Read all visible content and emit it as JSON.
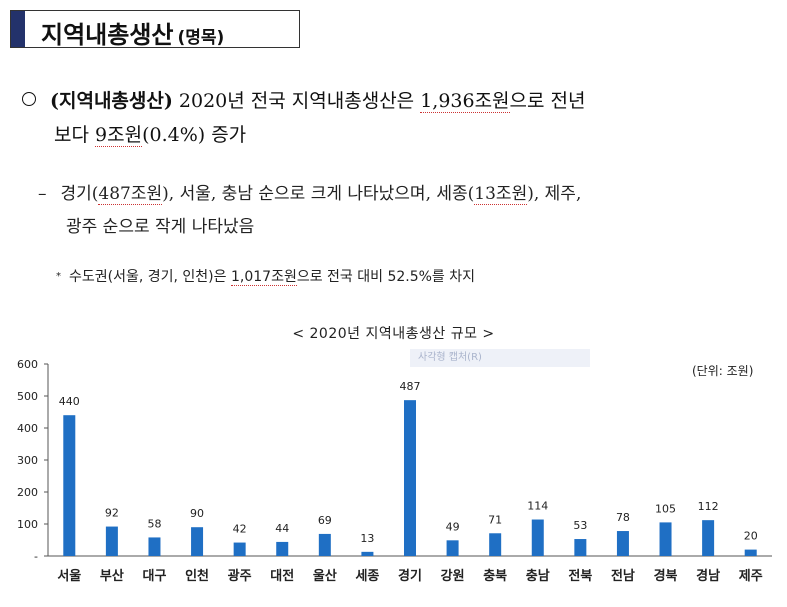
{
  "header": {
    "title": "지역내총생산",
    "subtitle": "(명목)"
  },
  "bullet1": {
    "lead": "(지역내총생산)",
    "part1": " 2020년 전국 지역내총생산은 ",
    "value1": "1,936조원",
    "part2": "으로 전년",
    "line2a": "보다 ",
    "value2": "9조원",
    "line2b": "(0.4%) 증가"
  },
  "bullet2": {
    "dash": "–",
    "part1": "경기(",
    "val1": "487조원",
    "part2": "), 서울, 충남 순으로 크게 나타났으며, 세종(",
    "val2": "13조원",
    "part3": "), 제주,",
    "line2": "광주 순으로 작게 나타났음"
  },
  "note": {
    "star": "*",
    "part1": "수도권(서울, 경기, 인천)은 ",
    "value": "1,017조원",
    "part2": "으로 전국 대비 52.5%를 차지"
  },
  "chart_caption": "< 2020년 지역내총생산 규모 >",
  "watermark": "사각형 캡처(R)",
  "chart_data": {
    "type": "bar",
    "title": "< 2020년 지역내총생산 규모 >",
    "unit": "(단위: 조원)",
    "categories": [
      "서울",
      "부산",
      "대구",
      "인천",
      "광주",
      "대전",
      "울산",
      "세종",
      "경기",
      "강원",
      "충북",
      "충남",
      "전북",
      "전남",
      "경북",
      "경남",
      "제주"
    ],
    "values": [
      440,
      92,
      58,
      90,
      42,
      44,
      69,
      13,
      487,
      49,
      71,
      114,
      53,
      78,
      105,
      112,
      20
    ],
    "ylim": [
      0,
      600
    ],
    "yticks": [
      "-",
      "100",
      "200",
      "300",
      "400",
      "500",
      "600"
    ],
    "grid": false,
    "colors": {
      "bar": "#1f6fc4"
    }
  }
}
